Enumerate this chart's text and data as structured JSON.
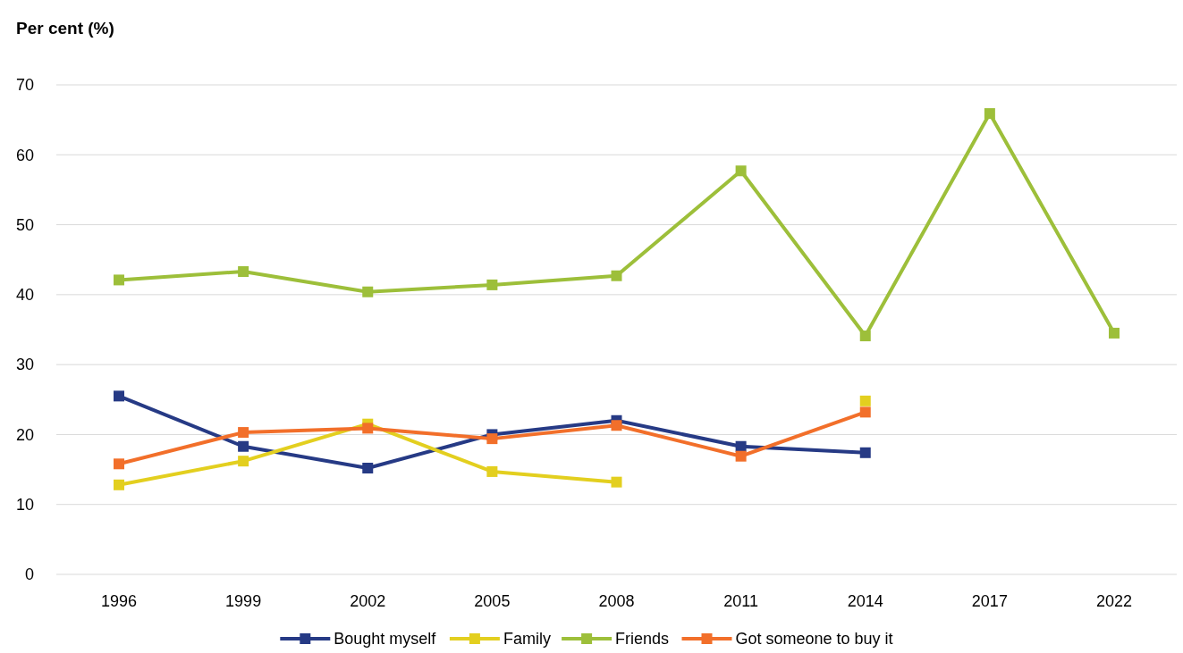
{
  "chart_data": {
    "type": "line",
    "ylabel": "Per cent (%)",
    "categories": [
      "1996",
      "1999",
      "2002",
      "2005",
      "2008",
      "2011",
      "2014",
      "2017",
      "2022"
    ],
    "ylim": [
      0,
      70
    ],
    "yticks": [
      0,
      10,
      20,
      30,
      40,
      50,
      60,
      70
    ],
    "grid": "y",
    "legend": "bottom",
    "marker": "square",
    "line_style": "solid",
    "series": [
      {
        "name": "Bought myself",
        "color": "#263a85",
        "values": [
          25.5,
          18.3,
          15.2,
          20.0,
          22.0,
          18.3,
          17.4,
          null,
          null
        ]
      },
      {
        "name": "Family",
        "color": "#e3cf1f",
        "values": [
          12.8,
          16.2,
          21.5,
          14.7,
          13.2,
          null,
          24.8,
          null,
          null
        ]
      },
      {
        "name": "Friends",
        "color": "#9dbf3a",
        "values": [
          42.1,
          43.3,
          40.4,
          41.4,
          42.7,
          57.7,
          34.1,
          65.9,
          34.5
        ]
      },
      {
        "name": "Got someone to buy it",
        "color": "#f26f2a",
        "values": [
          15.8,
          20.3,
          20.9,
          19.4,
          21.3,
          16.9,
          23.2,
          null,
          null
        ]
      }
    ]
  }
}
